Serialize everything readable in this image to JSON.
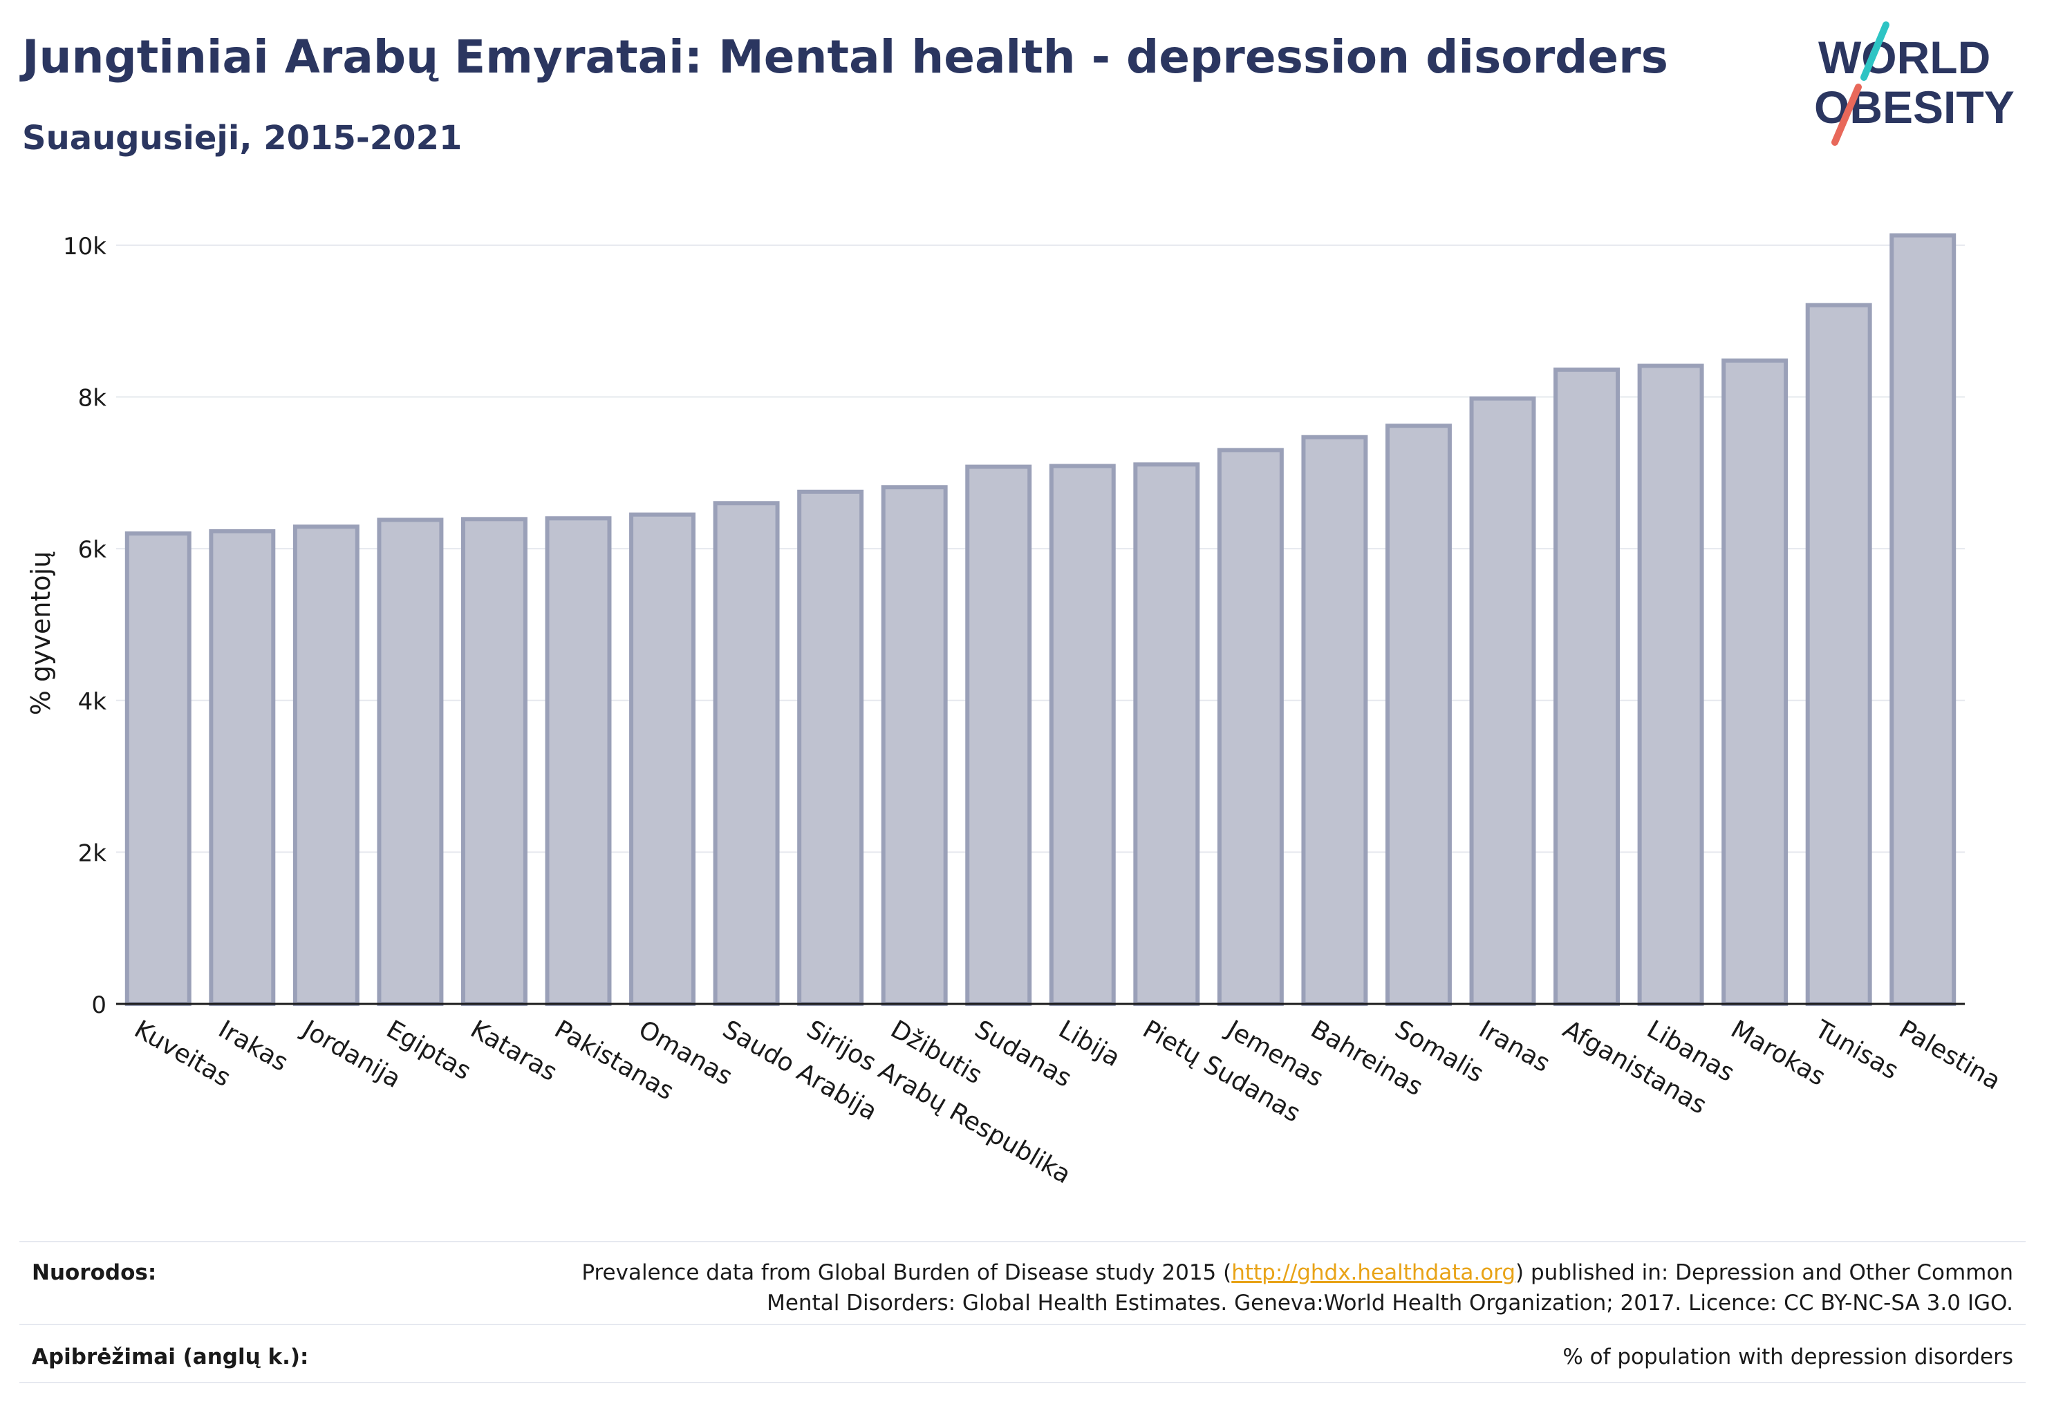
{
  "header": {
    "title": "Jungtiniai Arabų Emyratai: Mental health - depression disorders",
    "subtitle": "Suaugusieji, 2015-2021"
  },
  "logo": {
    "line1": "WORLD",
    "line2": "OBESITY",
    "colors": {
      "text": "#2b3660",
      "slash_teal": "#2ec4c4",
      "slash_red": "#e8685a"
    }
  },
  "chart_data": {
    "type": "bar",
    "ylabel": "% gyventojų",
    "ylim": [
      0,
      10500
    ],
    "yticks": [
      {
        "value": 0,
        "label": "0"
      },
      {
        "value": 2000,
        "label": "2k"
      },
      {
        "value": 4000,
        "label": "4k"
      },
      {
        "value": 6000,
        "label": "6k"
      },
      {
        "value": 8000,
        "label": "8k"
      },
      {
        "value": 10000,
        "label": "10k"
      }
    ],
    "grid": true,
    "categories": [
      "Kuveitas",
      "Irakas",
      "Jordanija",
      "Egiptas",
      "Kataras",
      "Pakistanas",
      "Omanas",
      "Saudo Arabija",
      "Sirijos Arabų Respublika",
      "Džibutis",
      "Sudanas",
      "Libija",
      "Pietų Sudanas",
      "Jemenas",
      "Bahreinas",
      "Somalis",
      "Iranas",
      "Afganistanas",
      "Libanas",
      "Marokas",
      "Tunisas",
      "Palestina"
    ],
    "values": [
      6200,
      6230,
      6290,
      6380,
      6390,
      6400,
      6450,
      6600,
      6750,
      6810,
      7080,
      7090,
      7110,
      7300,
      7470,
      7620,
      7980,
      8360,
      8410,
      8480,
      9210,
      10130
    ],
    "colors": {
      "bar_fill": "#bfc2d0",
      "bar_stroke": "#9aa0b8",
      "grid": "#e6e8ee"
    }
  },
  "footer": {
    "sources_label": "Nuorodos:",
    "sources_text_before": "Prevalence data from Global Burden of Disease study 2015 (",
    "sources_link": "http://ghdx.healthdata.org",
    "sources_text_after": ") published in: Depression and Other Common",
    "sources_text_line2": "Mental Disorders: Global Health Estimates. Geneva:World Health Organization; 2017. Licence: CC BY-NC-SA 3.0 IGO.",
    "definitions_label": "Apibrėžimai (anglų k.):",
    "definitions_text": "% of population with depression disorders"
  }
}
